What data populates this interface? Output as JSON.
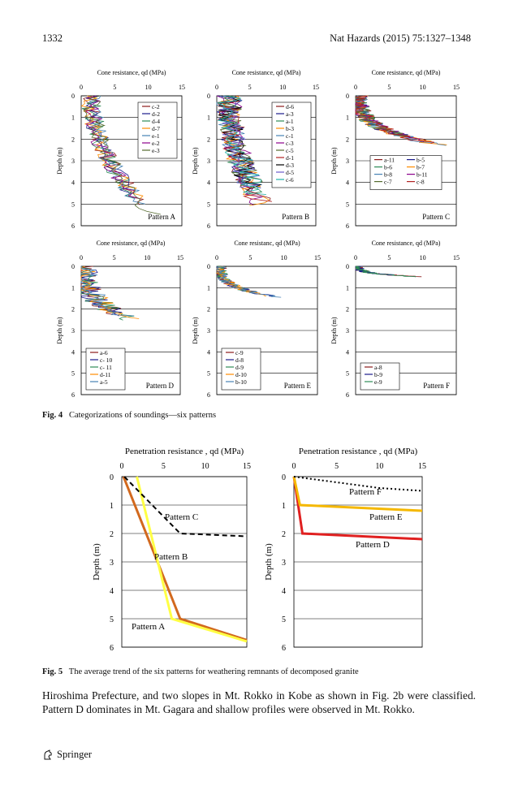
{
  "header": {
    "page_number": "1332",
    "journal": "Nat Hazards (2015) 75:1327–1348"
  },
  "fig4": {
    "caption_label": "Fig. 4",
    "caption_text": "Categorizations of soundings—six patterns",
    "ylabel": "Depth (m)",
    "panels": [
      {
        "pattern": "Pattern A",
        "xlabel": "Cone resistance, qd (MPa)",
        "legend": [
          "c-2",
          "d-2",
          "d-4",
          "d-7",
          "e-1",
          "e-2",
          "e-3"
        ],
        "legend_cols": 1
      },
      {
        "pattern": "Pattern B",
        "xlabel": "Cone resistance, qd (MPa)",
        "legend": [
          "d-6",
          "a-3",
          "a-1",
          "b-3",
          "c-1",
          "c-3",
          "c-5",
          "d-1",
          "d-3",
          "d-5",
          "c-6"
        ],
        "legend_cols": 1
      },
      {
        "pattern": "Pattern C",
        "xlabel": "Cone resistance, qd (MPa)",
        "legend": [
          "a-11",
          "b-5",
          "b-6",
          "b-7",
          "b-8",
          "b-11",
          "c-7",
          "c-8"
        ],
        "legend_cols": 2
      },
      {
        "pattern": "Pattern D",
        "xlabel": "Cone resistance, qd (MPa)",
        "legend": [
          "a-6",
          "c- 10",
          "c- 11",
          "d-11",
          "a-5"
        ],
        "legend_cols": 1
      },
      {
        "pattern": "Pattern E",
        "xlabel": "Cone resistanc, qd (MPa)",
        "legend": [
          "c-9",
          "d-8",
          "d-9",
          "d-10",
          "b-10"
        ],
        "legend_cols": 1
      },
      {
        "pattern": "Pattern F",
        "xlabel": "Cone resistance, qd (MPa)",
        "legend": [
          "a-8",
          "b-9",
          "e-9"
        ],
        "legend_cols": 1
      }
    ]
  },
  "fig5": {
    "caption_label": "Fig. 5",
    "caption_text": "The average trend of the six patterns for weathering remnants of decomposed granite"
  },
  "chart_data": [
    {
      "type": "line",
      "title": "Penetration resistance , qd (MPa)",
      "xlabel": "",
      "ylabel": "Depth (m)",
      "xlim": [
        0,
        15
      ],
      "ylim": [
        0,
        6
      ],
      "y_inverted": true,
      "x_ticks": [
        "0",
        "5",
        "10",
        "15"
      ],
      "y_ticks": [
        "0",
        "1",
        "2",
        "3",
        "4",
        "5",
        "6"
      ],
      "series": [
        {
          "name": "Pattern A",
          "color": "#d2691e",
          "dash": "solid",
          "points": [
            [
              0.2,
              0
            ],
            [
              7,
              5
            ],
            [
              15,
              5.75
            ]
          ]
        },
        {
          "name": "Pattern B",
          "color": "#ffff44",
          "dash": "solid",
          "points": [
            [
              1.8,
              0
            ],
            [
              6,
              5
            ],
            [
              15,
              5.8
            ]
          ]
        },
        {
          "name": "Pattern C",
          "color": "#000000",
          "dash": "dashed",
          "points": [
            [
              0.3,
              0
            ],
            [
              7,
              2
            ],
            [
              15,
              2.1
            ]
          ]
        }
      ]
    },
    {
      "type": "line",
      "title": "Penetration resistance , qd (MPa)",
      "xlabel": "",
      "ylabel": "Depth (m)",
      "xlim": [
        0,
        15
      ],
      "ylim": [
        0,
        6
      ],
      "y_inverted": true,
      "x_ticks": [
        "0",
        "5",
        "10",
        "15"
      ],
      "y_ticks": [
        "0",
        "1",
        "2",
        "3",
        "4",
        "5",
        "6"
      ],
      "series": [
        {
          "name": "Pattern D",
          "color": "#e02020",
          "dash": "solid",
          "points": [
            [
              0,
              0
            ],
            [
              1,
              2
            ],
            [
              15,
              2.2
            ]
          ]
        },
        {
          "name": "Pattern E",
          "color": "#f5b800",
          "dash": "solid",
          "points": [
            [
              0,
              0
            ],
            [
              0.7,
              1
            ],
            [
              15,
              1.2
            ]
          ]
        },
        {
          "name": "Pattern F",
          "color": "#000000",
          "dash": "dotted",
          "points": [
            [
              0,
              0
            ],
            [
              10,
              0.4
            ],
            [
              15,
              0.5
            ]
          ]
        }
      ]
    }
  ],
  "body": {
    "paragraph": "Hiroshima Prefecture, and two slopes in Mt. Rokko in Kobe as shown in Fig. 2b were classified. Pattern D dominates in Mt. Gagara and shallow profiles were observed in Mt. Rokko."
  },
  "footer": {
    "publisher": "Springer",
    "logo_icon": "springer-horse-icon"
  }
}
